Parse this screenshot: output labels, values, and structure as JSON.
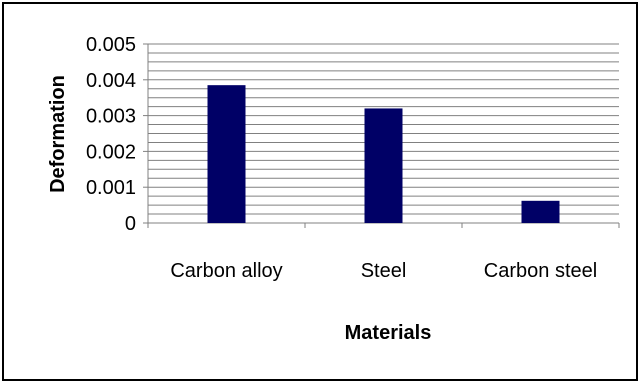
{
  "chart_data": {
    "type": "bar",
    "title": "",
    "xlabel": "Materials",
    "ylabel": "Deformation",
    "categories": [
      "Carbon alloy",
      "Steel",
      "Carbon steel"
    ],
    "values": [
      0.00385,
      0.0032,
      0.00062
    ],
    "ylim": [
      0,
      0.005
    ],
    "yticks": [
      "0",
      "0.001",
      "0.002",
      "0.003",
      "0.004",
      "0.005"
    ],
    "grid": true,
    "minor_grid_step": 0.00025,
    "legend": false,
    "colors": {
      "bar": "#000066",
      "grid": "#808080",
      "axis": "#808080"
    }
  }
}
